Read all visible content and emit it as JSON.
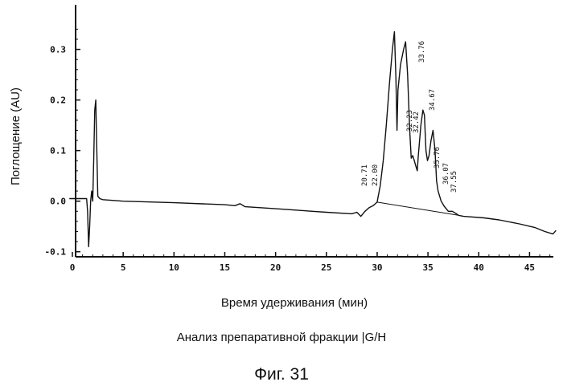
{
  "chart_data": {
    "type": "line",
    "xlabel": "Время удерживания (мин)",
    "ylabel": "Поглощение  (AU)",
    "xlim": [
      0,
      47.5
    ],
    "ylim": [
      -0.11,
      0.385
    ],
    "x_ticks": [
      0,
      5,
      10,
      15,
      20,
      25,
      30,
      35,
      40,
      45
    ],
    "y_ticks": [
      -0.1,
      0.0,
      0.1,
      0.2,
      0.3
    ],
    "y_tick_labels": [
      "-0.1",
      "0.0",
      "0.1",
      "0.2",
      "0.3"
    ],
    "grid": false,
    "series": [
      {
        "points": [
          [
            -0.3,
            0.005
          ],
          [
            1.0,
            0.005
          ],
          [
            1.4,
            0.005
          ],
          [
            1.5,
            -0.02
          ],
          [
            1.6,
            -0.09
          ],
          [
            1.7,
            -0.05
          ],
          [
            1.8,
            0.0
          ],
          [
            1.9,
            0.02
          ],
          [
            2.0,
            0.0
          ],
          [
            2.1,
            0.08
          ],
          [
            2.2,
            0.18
          ],
          [
            2.3,
            0.2
          ],
          [
            2.35,
            0.15
          ],
          [
            2.5,
            0.01
          ],
          [
            2.7,
            0.005
          ],
          [
            3.0,
            0.003
          ],
          [
            5.0,
            0.0
          ],
          [
            10.0,
            -0.003
          ],
          [
            15.0,
            -0.007
          ],
          [
            16.0,
            -0.009
          ],
          [
            16.5,
            -0.005
          ],
          [
            17.0,
            -0.011
          ],
          [
            20.0,
            -0.015
          ],
          [
            25.0,
            -0.022
          ],
          [
            27.5,
            -0.025
          ],
          [
            28.0,
            -0.022
          ],
          [
            28.4,
            -0.03
          ],
          [
            28.8,
            -0.02
          ],
          [
            29.2,
            -0.013
          ],
          [
            29.6,
            -0.009
          ],
          [
            30.0,
            -0.002
          ],
          [
            30.3,
            0.03
          ],
          [
            30.6,
            0.08
          ],
          [
            30.9,
            0.15
          ],
          [
            31.2,
            0.23
          ],
          [
            31.5,
            0.3
          ],
          [
            31.7,
            0.335
          ],
          [
            31.85,
            0.24
          ],
          [
            31.95,
            0.14
          ],
          [
            32.05,
            0.22
          ],
          [
            32.3,
            0.27
          ],
          [
            32.6,
            0.3
          ],
          [
            32.8,
            0.315
          ],
          [
            33.0,
            0.25
          ],
          [
            33.2,
            0.14
          ],
          [
            33.35,
            0.085
          ],
          [
            33.5,
            0.09
          ],
          [
            33.65,
            0.08
          ],
          [
            33.8,
            0.07
          ],
          [
            33.95,
            0.06
          ],
          [
            34.05,
            0.09
          ],
          [
            34.3,
            0.15
          ],
          [
            34.5,
            0.18
          ],
          [
            34.65,
            0.17
          ],
          [
            34.8,
            0.1
          ],
          [
            34.95,
            0.08
          ],
          [
            35.1,
            0.09
          ],
          [
            35.3,
            0.12
          ],
          [
            35.5,
            0.14
          ],
          [
            35.7,
            0.1
          ],
          [
            35.85,
            0.04
          ],
          [
            36.0,
            0.02
          ],
          [
            36.3,
            0.0
          ],
          [
            36.6,
            -0.01
          ],
          [
            37.0,
            -0.02
          ],
          [
            37.4,
            -0.02
          ],
          [
            37.8,
            -0.025
          ],
          [
            38.0,
            -0.028
          ],
          [
            38.5,
            -0.03
          ],
          [
            40.5,
            -0.033
          ],
          [
            42.0,
            -0.037
          ],
          [
            44.0,
            -0.045
          ],
          [
            45.5,
            -0.052
          ],
          [
            46.5,
            -0.06
          ],
          [
            47.3,
            -0.065
          ],
          [
            47.6,
            -0.058
          ]
        ]
      },
      {
        "points": [
          [
            30.0,
            -0.002
          ],
          [
            38.0,
            -0.028
          ]
        ]
      }
    ],
    "peak_labels": [
      "20.71",
      "22.00",
      "32.23",
      "32.42",
      "33.76",
      "34.67",
      "35.76",
      "36.07",
      "37.55"
    ]
  },
  "captions": {
    "subtitle": "Анализ препаративной фракции |G/H",
    "figure": "Фиг. 31"
  }
}
